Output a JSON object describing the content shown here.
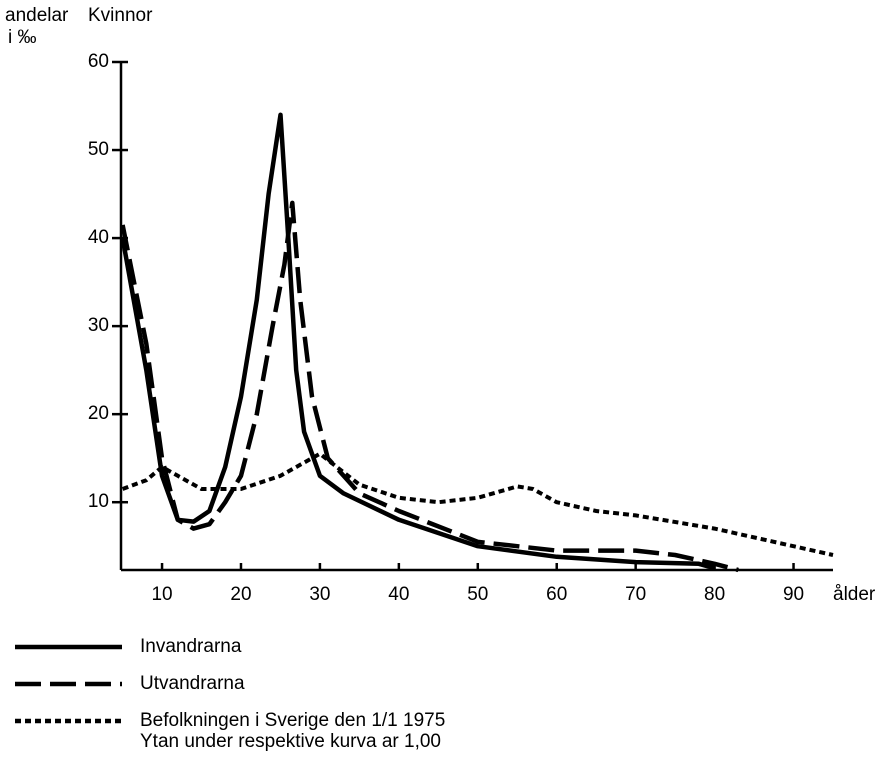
{
  "chart_data": {
    "type": "line",
    "title": "Kvinnor",
    "y_label": "andelar",
    "y_unit": "i ‰",
    "x_label": "ålder",
    "xlim": [
      4.8,
      95
    ],
    "xticks": [
      10,
      20,
      30,
      40,
      50,
      60,
      70,
      80,
      90
    ],
    "ylim": [
      2.3,
      60
    ],
    "yticks": [
      10,
      20,
      30,
      40,
      50,
      60
    ],
    "series": [
      {
        "name": "Invandrarna",
        "color": "#000000",
        "dash": "solid",
        "x": [
          5,
          8,
          10,
          12,
          14,
          16,
          18,
          20,
          22,
          23.5,
          25,
          26,
          27,
          28,
          30,
          33,
          40,
          50,
          60,
          70,
          78,
          80
        ],
        "values": [
          40,
          25,
          13,
          8,
          7.8,
          9,
          14,
          22,
          33,
          45,
          54,
          40,
          25,
          18,
          13,
          11,
          8,
          5,
          3.8,
          3.2,
          3,
          2.5
        ]
      },
      {
        "name": "Utvandrarna",
        "color": "#000000",
        "dash": "dashed",
        "x": [
          5,
          8,
          10,
          12,
          14,
          16,
          18,
          20,
          22,
          24,
          25.5,
          26.5,
          27.5,
          29,
          31,
          35,
          40,
          50,
          60,
          70,
          75,
          80,
          83
        ],
        "values": [
          41.5,
          28,
          15,
          8,
          7,
          7.5,
          10,
          13,
          20,
          30,
          37,
          44,
          33,
          22,
          15,
          11,
          9,
          5.5,
          4.5,
          4.5,
          4,
          3,
          2.3
        ]
      },
      {
        "name": "Befolkningen i Sverige den 1/1 1975",
        "color": "#000000",
        "dash": "dotted",
        "x": [
          5,
          8,
          10,
          12,
          15,
          20,
          25,
          30,
          35,
          40,
          45,
          50,
          55,
          57,
          60,
          65,
          70,
          80,
          90,
          95
        ],
        "values": [
          11.5,
          12.5,
          14,
          13,
          11.5,
          11.5,
          13,
          15.5,
          12,
          10.5,
          10,
          10.5,
          11.8,
          11.5,
          10,
          9,
          8.5,
          7,
          5,
          4
        ]
      }
    ],
    "note": "Ytan under respektive kurva ar 1,00"
  }
}
